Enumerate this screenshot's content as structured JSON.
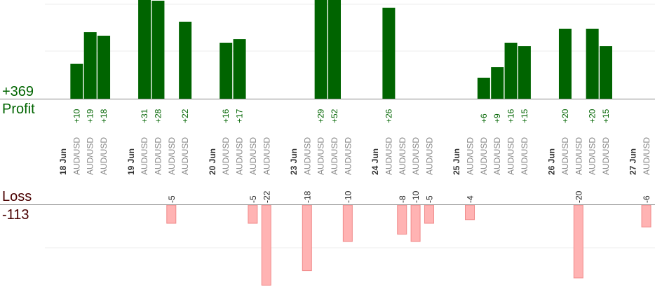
{
  "colors": {
    "profit_bar": "#006400",
    "profit_text": "#006400",
    "loss_bar": "#ffb3b3",
    "loss_bar_border": "#f08a8a",
    "loss_text": "#4a0000",
    "axis": "#888888",
    "grid": "#eeeeee",
    "date_text": "#333333",
    "pair_text": "#888888"
  },
  "summary": {
    "profit_total": "+369",
    "profit_label": "Profit",
    "loss_label": "Loss",
    "loss_total": "-113"
  },
  "chart_data": {
    "type": "bar",
    "title": "",
    "xlabel": "",
    "ylabel": "",
    "profit_ylim": [
      0,
      28
    ],
    "loss_ylim": [
      0,
      22
    ],
    "grid": true,
    "columns": [
      {
        "label": "18 Jun",
        "kind": "date"
      },
      {
        "label": "AUD/USD",
        "kind": "trade",
        "profit": 10
      },
      {
        "label": "AUD/USD",
        "kind": "trade",
        "profit": 19
      },
      {
        "label": "AUD/USD",
        "kind": "trade",
        "profit": 18
      },
      {
        "label": "",
        "kind": "gap"
      },
      {
        "label": "19 Jun",
        "kind": "date"
      },
      {
        "label": "AUD/USD",
        "kind": "trade",
        "profit": 31
      },
      {
        "label": "AUD/USD",
        "kind": "trade",
        "profit": 28
      },
      {
        "label": "AUD/USD",
        "kind": "trade",
        "loss": 5
      },
      {
        "label": "AUD/USD",
        "kind": "trade",
        "profit": 22
      },
      {
        "label": "",
        "kind": "gap"
      },
      {
        "label": "20 Jun",
        "kind": "date"
      },
      {
        "label": "AUD/USD",
        "kind": "trade",
        "profit": 16
      },
      {
        "label": "AUD/USD",
        "kind": "trade",
        "profit": 17
      },
      {
        "label": "AUD/USD",
        "kind": "trade",
        "loss": 5
      },
      {
        "label": "AUD/USD",
        "kind": "trade",
        "loss": 22
      },
      {
        "label": "",
        "kind": "gap"
      },
      {
        "label": "23 Jun",
        "kind": "date"
      },
      {
        "label": "AUD/USD",
        "kind": "trade",
        "loss": 18
      },
      {
        "label": "AUD/USD",
        "kind": "trade",
        "profit": 29
      },
      {
        "label": "AUD/USD",
        "kind": "trade",
        "profit": 52
      },
      {
        "label": "AUD/USD",
        "kind": "trade",
        "loss": 10
      },
      {
        "label": "",
        "kind": "gap"
      },
      {
        "label": "24 Jun",
        "kind": "date"
      },
      {
        "label": "AUD/USD",
        "kind": "trade",
        "profit": 26
      },
      {
        "label": "AUD/USD",
        "kind": "trade",
        "loss": 8
      },
      {
        "label": "AUD/USD",
        "kind": "trade",
        "loss": 10
      },
      {
        "label": "AUD/USD",
        "kind": "trade",
        "loss": 5
      },
      {
        "label": "",
        "kind": "gap"
      },
      {
        "label": "25 Jun",
        "kind": "date"
      },
      {
        "label": "AUD/USD",
        "kind": "trade",
        "loss": 4
      },
      {
        "label": "AUD/USD",
        "kind": "trade",
        "profit": 6
      },
      {
        "label": "AUD/USD",
        "kind": "trade",
        "profit": 9
      },
      {
        "label": "AUD/USD",
        "kind": "trade",
        "profit": 16
      },
      {
        "label": "AUD/USD",
        "kind": "trade",
        "profit": 15
      },
      {
        "label": "",
        "kind": "gap"
      },
      {
        "label": "26 Jun",
        "kind": "date"
      },
      {
        "label": "AUD/USD",
        "kind": "trade",
        "profit": 20
      },
      {
        "label": "AUD/USD",
        "kind": "trade",
        "loss": 20
      },
      {
        "label": "AUD/USD",
        "kind": "trade",
        "profit": 20
      },
      {
        "label": "AUD/USD",
        "kind": "trade",
        "profit": 15
      },
      {
        "label": "",
        "kind": "gap"
      },
      {
        "label": "27 Jun",
        "kind": "date"
      },
      {
        "label": "AUD/USD",
        "kind": "trade",
        "loss": 6
      }
    ]
  }
}
